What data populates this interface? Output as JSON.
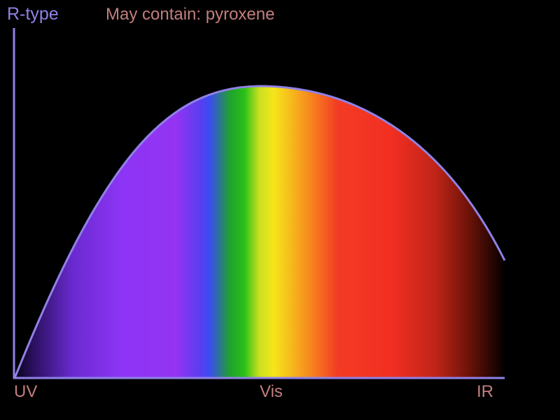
{
  "diagram": {
    "title": "R-type",
    "subtitle": "May contain: pyroxene",
    "x_labels": {
      "uv": "UV",
      "vis": "Vis",
      "ir": "IR"
    },
    "colors": {
      "axis_and_curve": "#8f82e6",
      "title": "#8f82e6",
      "labels": "#c27e7e",
      "background": "#000000"
    },
    "spectrum_gradient": [
      {
        "offset": "0%",
        "color": "#0a0418"
      },
      {
        "offset": "4%",
        "color": "#2b1060"
      },
      {
        "offset": "12%",
        "color": "#6a2ad0"
      },
      {
        "offset": "22%",
        "color": "#8d35f5"
      },
      {
        "offset": "33%",
        "color": "#9433f2"
      },
      {
        "offset": "38%",
        "color": "#5a3ef0"
      },
      {
        "offset": "40%",
        "color": "#3a4df0"
      },
      {
        "offset": "44%",
        "color": "#20a030"
      },
      {
        "offset": "47%",
        "color": "#28c018"
      },
      {
        "offset": "50%",
        "color": "#c8e020"
      },
      {
        "offset": "53%",
        "color": "#f5e61a"
      },
      {
        "offset": "57%",
        "color": "#f7b41d"
      },
      {
        "offset": "61%",
        "color": "#f7801f"
      },
      {
        "offset": "66%",
        "color": "#f33b24"
      },
      {
        "offset": "77%",
        "color": "#f22f22"
      },
      {
        "offset": "86%",
        "color": "#c02418"
      },
      {
        "offset": "93%",
        "color": "#6a1208"
      },
      {
        "offset": "100%",
        "color": "#050000"
      }
    ]
  }
}
